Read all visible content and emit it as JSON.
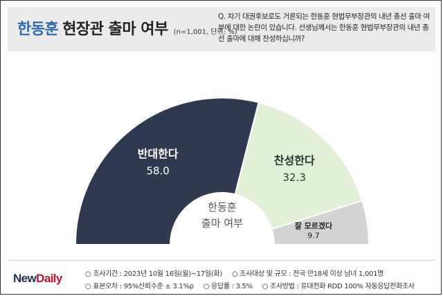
{
  "header": {
    "title_accent": "한동훈",
    "title_rest": "현장관 출마 여부",
    "note": "(n=1,001, 단위: %)",
    "question": "Q. 차기 대권후보로도 거론되는 한동훈 현법무부장관의 내년 총선 출마 여부에 대한 논란이 있습니다. 선생님께서는 한동훈 현법무부장관의 내년 총선 출마에 대해 찬성하십니까?"
  },
  "chart_data": {
    "type": "pie",
    "variant": "half-donut",
    "center_label_line1": "한동훈",
    "center_label_line2": "출마 여부",
    "slices": [
      {
        "label": "반대한다",
        "value": 58.0,
        "value_text": "58.0",
        "color": "#2d3a4f",
        "text_color": "#ffffff"
      },
      {
        "label": "찬성한다",
        "value": 32.3,
        "value_text": "32.3",
        "color": "#e2f0d6",
        "text_color": "#1d3b2a"
      },
      {
        "label": "잘 모르겠다",
        "value": 9.7,
        "value_text": "9.7",
        "color": "#d3d3d3",
        "text_color": "#222222"
      }
    ]
  },
  "footer": {
    "logo_main": "New",
    "logo_accent": "Daily",
    "period": "○ 조사기간 : 2023년 10월 16일(월)~17일(화)",
    "target": "○ 조사대상 및 규모 : 전국 만18세 이상 남녀  1,001명",
    "error": "○ 표본오차 : 95%신뢰수준 ± 3.1%p",
    "response": "○ 응답률 : 3.5%",
    "method": "○ 조사방법 : 유대전화 RDD 100% 자동응답전화조사"
  }
}
